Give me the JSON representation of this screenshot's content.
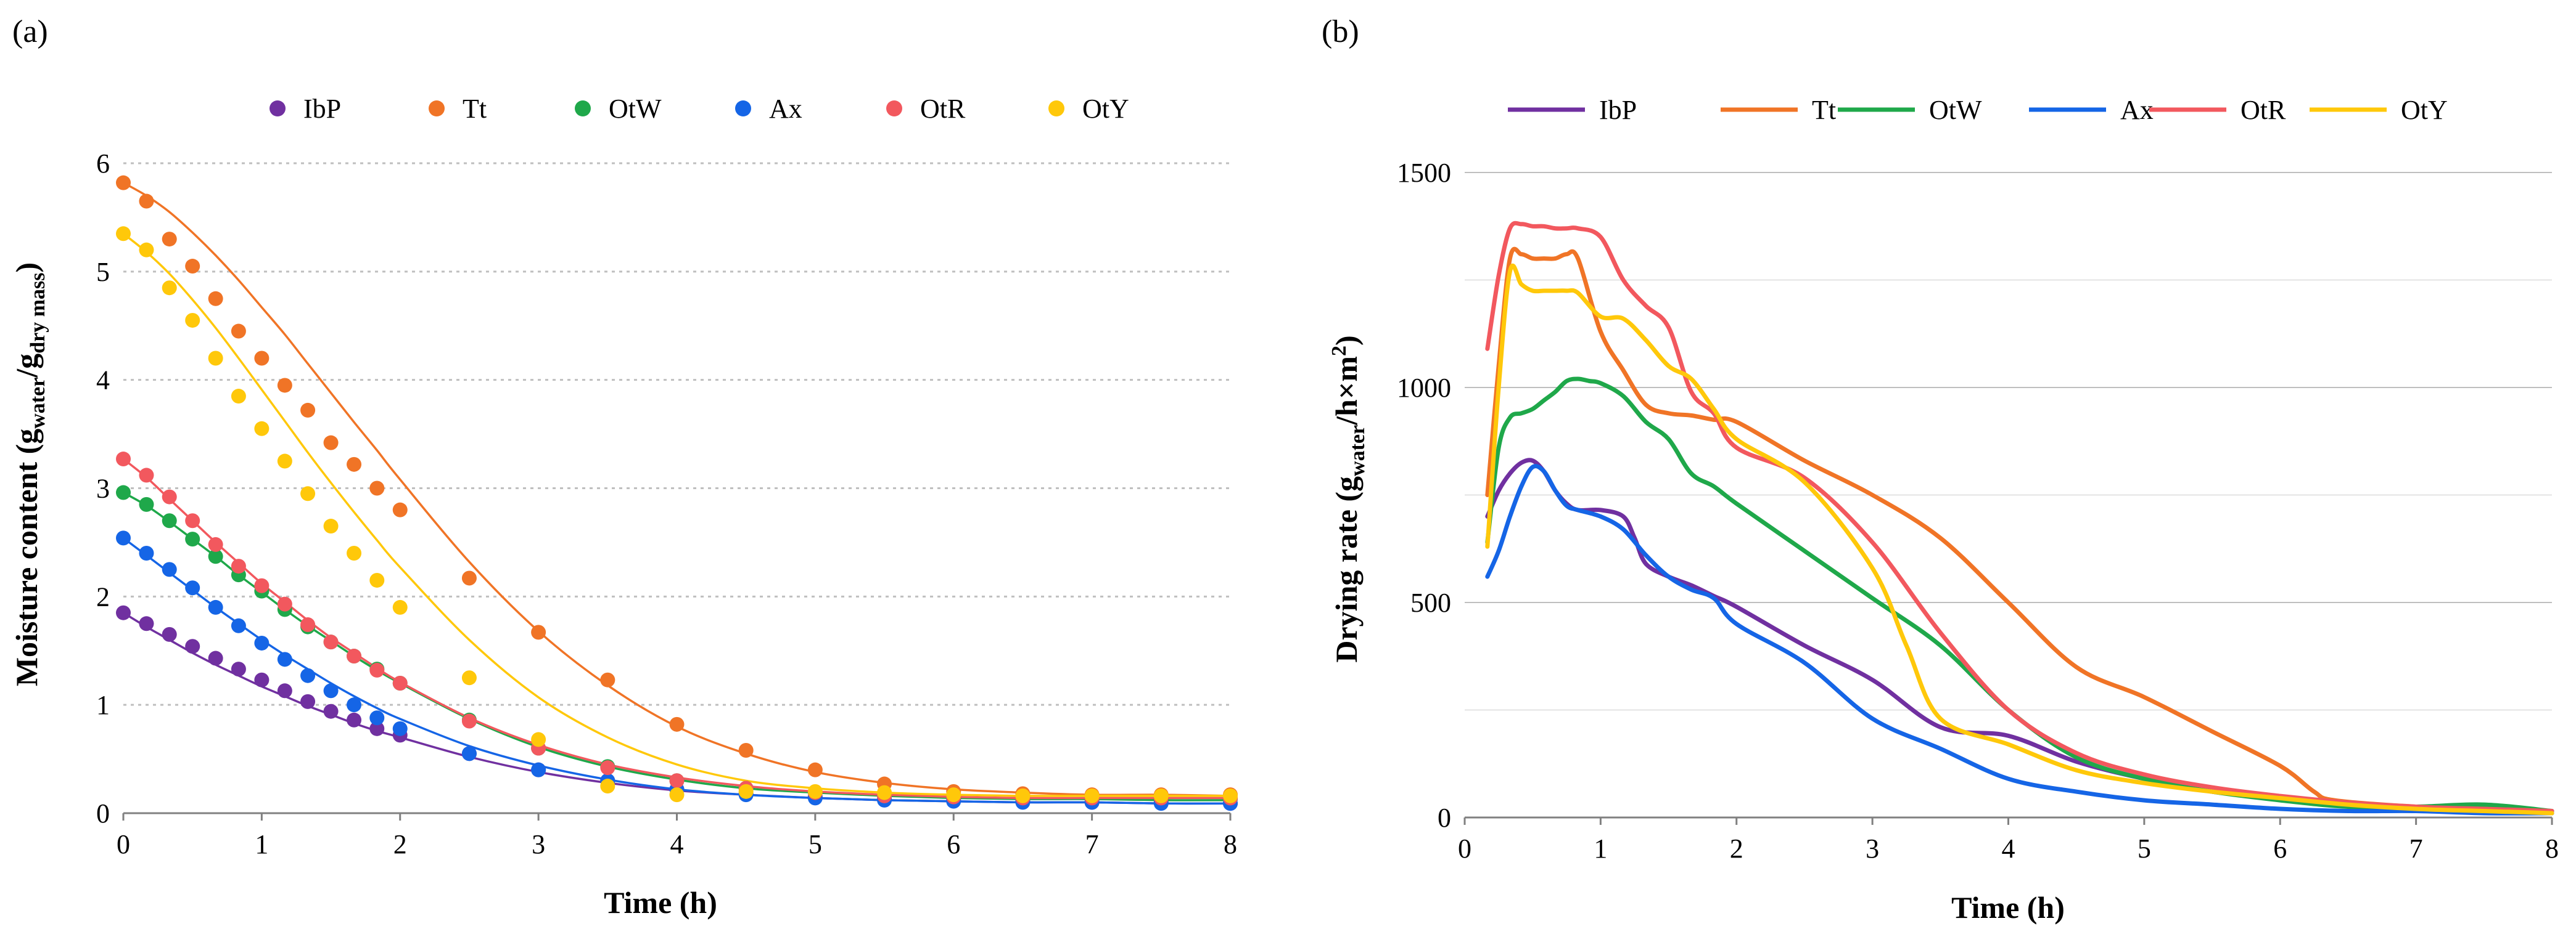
{
  "colors": {
    "IbP": "#7030A0",
    "Tt": "#F07426",
    "OtW": "#1FA84A",
    "Ax": "#1565E6",
    "OtR": "#F2585E",
    "OtY": "#FFC80A",
    "grid": "#BFBFBF",
    "axis": "#808080"
  },
  "chart_data": [
    {
      "panel": "(a)",
      "type": "scatter",
      "xlabel": "Time (h)",
      "ylabel_parts": {
        "main": "Moisture content (g",
        "sub1": "water",
        "sep": "/g",
        "sub2": "dry mass",
        "close": ")"
      },
      "xlim": [
        0,
        8
      ],
      "ylim": [
        0,
        6
      ],
      "xticks": [
        "0",
        "1",
        "2",
        "3",
        "4",
        "5",
        "6",
        "7",
        "8"
      ],
      "yticks": [
        "0",
        "1",
        "2",
        "3",
        "4",
        "5",
        "6"
      ],
      "legend_position": "top",
      "x": [
        0,
        0.167,
        0.333,
        0.5,
        0.667,
        0.833,
        1,
        1.167,
        1.333,
        1.5,
        1.667,
        1.833,
        2,
        2.5,
        3,
        3.5,
        4,
        4.5,
        5,
        5.5,
        6,
        6.5,
        7,
        7.5,
        8
      ],
      "series": [
        {
          "name": "IbP",
          "points": [
            1.85,
            1.75,
            1.65,
            1.54,
            1.43,
            1.33,
            1.23,
            1.13,
            1.03,
            0.94,
            0.86,
            0.78,
            0.72,
            0.55,
            0.4,
            0.3,
            0.22,
            0.18,
            0.15,
            0.13,
            0.12,
            0.11,
            0.1,
            0.1,
            0.09
          ],
          "fit": [
            1.85,
            1.72,
            1.6,
            1.48,
            1.37,
            1.27,
            1.17,
            1.08,
            0.99,
            0.91,
            0.83,
            0.76,
            0.7,
            0.52,
            0.38,
            0.28,
            0.21,
            0.17,
            0.14,
            0.12,
            0.11,
            0.1,
            0.1,
            0.09,
            0.09
          ]
        },
        {
          "name": "Tt",
          "points": [
            5.82,
            5.65,
            5.3,
            5.05,
            4.75,
            4.45,
            4.2,
            3.95,
            3.72,
            3.42,
            3.22,
            3.0,
            2.8,
            2.17,
            1.67,
            1.23,
            0.82,
            0.58,
            0.4,
            0.27,
            0.2,
            0.18,
            0.17,
            0.17,
            0.17
          ],
          "fit": [
            5.82,
            5.7,
            5.55,
            5.36,
            5.15,
            4.92,
            4.67,
            4.42,
            4.15,
            3.88,
            3.61,
            3.35,
            3.08,
            2.32,
            1.68,
            1.18,
            0.8,
            0.55,
            0.38,
            0.28,
            0.22,
            0.19,
            0.17,
            0.17,
            0.16
          ]
        },
        {
          "name": "OtW",
          "points": [
            2.96,
            2.85,
            2.7,
            2.53,
            2.37,
            2.2,
            2.05,
            1.88,
            1.72,
            1.58,
            1.45,
            1.33,
            1.2,
            0.86,
            0.6,
            0.43,
            0.3,
            0.23,
            0.19,
            0.16,
            0.14,
            0.13,
            0.13,
            0.13,
            0.13
          ],
          "fit": [
            2.96,
            2.84,
            2.69,
            2.53,
            2.37,
            2.2,
            2.04,
            1.88,
            1.73,
            1.59,
            1.45,
            1.32,
            1.2,
            0.87,
            0.61,
            0.43,
            0.31,
            0.23,
            0.19,
            0.16,
            0.14,
            0.13,
            0.13,
            0.12,
            0.12
          ]
        },
        {
          "name": "Ax",
          "points": [
            2.54,
            2.4,
            2.25,
            2.08,
            1.9,
            1.73,
            1.57,
            1.42,
            1.27,
            1.13,
            1.0,
            0.88,
            0.78,
            0.55,
            0.4,
            0.3,
            0.22,
            0.17,
            0.14,
            0.12,
            0.11,
            0.1,
            0.1,
            0.09,
            0.09
          ],
          "fit": [
            2.54,
            2.38,
            2.22,
            2.06,
            1.9,
            1.75,
            1.6,
            1.46,
            1.33,
            1.2,
            1.08,
            0.97,
            0.87,
            0.62,
            0.44,
            0.31,
            0.22,
            0.17,
            0.14,
            0.12,
            0.11,
            0.1,
            0.1,
            0.09,
            0.09
          ]
        },
        {
          "name": "OtR",
          "points": [
            3.27,
            3.12,
            2.92,
            2.7,
            2.48,
            2.28,
            2.1,
            1.93,
            1.74,
            1.58,
            1.45,
            1.32,
            1.2,
            0.85,
            0.6,
            0.42,
            0.3,
            0.23,
            0.19,
            0.16,
            0.15,
            0.14,
            0.14,
            0.14,
            0.14
          ],
          "fit": [
            3.27,
            3.1,
            2.9,
            2.7,
            2.5,
            2.31,
            2.12,
            1.95,
            1.78,
            1.62,
            1.48,
            1.34,
            1.21,
            0.88,
            0.63,
            0.45,
            0.33,
            0.25,
            0.2,
            0.17,
            0.15,
            0.14,
            0.14,
            0.14,
            0.14
          ]
        },
        {
          "name": "OtY",
          "points": [
            5.35,
            5.2,
            4.85,
            4.55,
            4.2,
            3.85,
            3.55,
            3.25,
            2.95,
            2.65,
            2.4,
            2.15,
            1.9,
            1.25,
            0.68,
            0.25,
            0.17,
            0.2,
            0.2,
            0.19,
            0.17,
            0.16,
            0.16,
            0.16,
            0.16
          ],
          "fit": [
            5.35,
            5.18,
            4.98,
            4.74,
            4.48,
            4.2,
            3.91,
            3.62,
            3.33,
            3.05,
            2.78,
            2.52,
            2.27,
            1.6,
            1.07,
            0.7,
            0.45,
            0.3,
            0.23,
            0.19,
            0.17,
            0.16,
            0.16,
            0.16,
            0.16
          ]
        }
      ]
    },
    {
      "panel": "(b)",
      "type": "line",
      "xlabel": "Time (h)",
      "ylabel_parts": {
        "main": "Drying rate (g",
        "sub1": "water",
        "sep": "/h×m",
        "sup": "2",
        "close": ")"
      },
      "xlim": [
        0,
        8
      ],
      "ylim": [
        0,
        1500
      ],
      "xticks": [
        "0",
        "1",
        "2",
        "3",
        "4",
        "5",
        "6",
        "7",
        "8"
      ],
      "yticks": [
        "0",
        "500",
        "1000",
        "1500"
      ],
      "legend_position": "top",
      "series": [
        {
          "name": "IbP",
          "x": [
            0.167,
            0.25,
            0.333,
            0.417,
            0.5,
            0.583,
            0.667,
            0.75,
            0.833,
            1.0,
            1.167,
            1.25,
            1.333,
            1.5,
            1.667,
            1.833,
            2.0,
            2.5,
            3.0,
            3.5,
            4.0,
            4.5,
            5.0,
            5.5,
            6.0,
            6.5,
            7.0,
            7.5,
            8.0
          ],
          "y": [
            700,
            760,
            800,
            825,
            830,
            805,
            760,
            730,
            715,
            715,
            700,
            650,
            590,
            560,
            540,
            515,
            490,
            400,
            320,
            210,
            190,
            130,
            90,
            60,
            45,
            30,
            20,
            15,
            10
          ]
        },
        {
          "name": "Tt",
          "x": [
            0.167,
            0.25,
            0.333,
            0.417,
            0.5,
            0.583,
            0.667,
            0.75,
            0.833,
            1.0,
            1.167,
            1.333,
            1.5,
            1.667,
            1.833,
            2.0,
            2.5,
            3.0,
            3.5,
            4.0,
            4.5,
            5.0,
            5.5,
            6.0,
            6.25,
            6.4,
            7.0,
            7.5,
            8.0
          ],
          "y": [
            750,
            1050,
            1300,
            1310,
            1300,
            1300,
            1300,
            1310,
            1300,
            1130,
            1040,
            960,
            940,
            935,
            925,
            920,
            830,
            750,
            650,
            500,
            350,
            280,
            200,
            120,
            60,
            40,
            25,
            20,
            15
          ]
        },
        {
          "name": "OtW",
          "x": [
            0.167,
            0.25,
            0.333,
            0.417,
            0.5,
            0.583,
            0.667,
            0.75,
            0.833,
            0.917,
            1.0,
            1.167,
            1.333,
            1.5,
            1.667,
            1.833,
            2.0,
            2.5,
            3.0,
            3.5,
            4.0,
            4.5,
            5.0,
            5.5,
            6.0,
            6.5,
            7.0,
            7.5,
            8.0
          ],
          "y": [
            640,
            860,
            930,
            940,
            950,
            970,
            990,
            1015,
            1020,
            1015,
            1010,
            980,
            920,
            880,
            800,
            770,
            730,
            620,
            510,
            400,
            250,
            140,
            90,
            60,
            40,
            25,
            25,
            30,
            15
          ]
        },
        {
          "name": "Ax",
          "x": [
            0.167,
            0.25,
            0.333,
            0.417,
            0.5,
            0.583,
            0.667,
            0.75,
            0.833,
            1.0,
            1.167,
            1.333,
            1.5,
            1.667,
            1.833,
            2.0,
            2.5,
            3.0,
            3.5,
            4.0,
            4.5,
            5.0,
            5.5,
            6.0,
            6.5,
            7.0,
            7.5,
            8.0
          ],
          "y": [
            560,
            620,
            700,
            770,
            815,
            805,
            760,
            725,
            715,
            700,
            670,
            610,
            560,
            530,
            510,
            450,
            360,
            230,
            160,
            90,
            60,
            40,
            30,
            20,
            15,
            15,
            10,
            10
          ]
        },
        {
          "name": "OtR",
          "x": [
            0.167,
            0.25,
            0.333,
            0.417,
            0.5,
            0.583,
            0.667,
            0.75,
            0.833,
            1.0,
            1.167,
            1.333,
            1.5,
            1.667,
            1.833,
            2.0,
            2.5,
            3.0,
            3.5,
            4.0,
            4.5,
            5.0,
            5.5,
            6.0,
            6.5,
            7.0,
            7.5,
            8.0
          ],
          "y": [
            1090,
            1260,
            1370,
            1380,
            1375,
            1375,
            1370,
            1370,
            1370,
            1350,
            1250,
            1190,
            1140,
            990,
            940,
            860,
            790,
            640,
            430,
            250,
            150,
            100,
            70,
            50,
            35,
            25,
            20,
            15
          ]
        },
        {
          "name": "OtY",
          "x": [
            0.167,
            0.25,
            0.333,
            0.417,
            0.5,
            0.583,
            0.667,
            0.75,
            0.833,
            1.0,
            1.167,
            1.333,
            1.5,
            1.667,
            1.833,
            2.0,
            2.5,
            3.0,
            3.25,
            3.5,
            4.0,
            4.5,
            5.0,
            5.5,
            6.0,
            6.5,
            7.0,
            7.5,
            8.0
          ],
          "y": [
            630,
            1000,
            1270,
            1240,
            1225,
            1225,
            1225,
            1225,
            1220,
            1165,
            1160,
            1110,
            1050,
            1020,
            950,
            880,
            780,
            580,
            400,
            230,
            170,
            110,
            80,
            60,
            45,
            30,
            20,
            15,
            10
          ]
        }
      ]
    }
  ]
}
